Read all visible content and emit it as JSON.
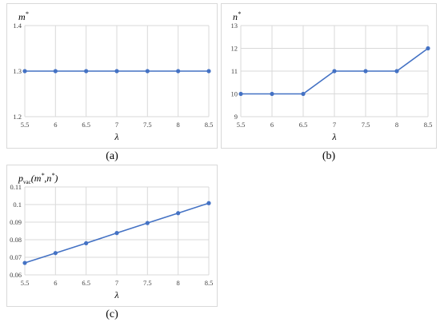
{
  "chart_data": [
    {
      "id": "a",
      "type": "line",
      "caption": "(a)",
      "title": "m*",
      "xlabel": "λ",
      "ylabel": "",
      "x": [
        5.5,
        6,
        6.5,
        7,
        7.5,
        8,
        8.5
      ],
      "x_tick_labels": [
        "5.5",
        "6",
        "6.5",
        "7",
        "7.5",
        "8",
        "8.5"
      ],
      "y_ticks": [
        1.2,
        1.3,
        1.4
      ],
      "y_tick_labels": [
        "1.2",
        "1.3",
        "1.4"
      ],
      "ylim": [
        1.2,
        1.4
      ],
      "grid": true,
      "legend": "none",
      "series": [
        {
          "values": [
            1.3,
            1.3,
            1.3,
            1.3,
            1.3,
            1.3,
            1.3
          ],
          "color": "#4472c4"
        }
      ]
    },
    {
      "id": "b",
      "type": "line",
      "caption": "(b)",
      "title": "n*",
      "xlabel": "λ",
      "ylabel": "",
      "x": [
        5.5,
        6,
        6.5,
        7,
        7.5,
        8,
        8.5
      ],
      "x_tick_labels": [
        "5.5",
        "6",
        "6.5",
        "7",
        "7.5",
        "8",
        "8.5"
      ],
      "y_ticks": [
        9,
        10,
        11,
        12,
        13
      ],
      "y_tick_labels": [
        "9",
        "10",
        "11",
        "12",
        "13"
      ],
      "ylim": [
        9,
        13
      ],
      "grid": true,
      "legend": "none",
      "series": [
        {
          "values": [
            10,
            10,
            10,
            11,
            11,
            11,
            12
          ],
          "color": "#4472c4"
        }
      ]
    },
    {
      "id": "c",
      "type": "line",
      "caption": "(c)",
      "title": "pvac(m*,n*)",
      "title_parts": {
        "main": "p",
        "sub": "vac",
        "open": "(m",
        "star1": "*",
        "comma": ",n",
        "star2": "*",
        "close": ")"
      },
      "xlabel": "λ",
      "ylabel": "",
      "x": [
        5.5,
        6,
        6.5,
        7,
        7.5,
        8,
        8.5
      ],
      "x_tick_labels": [
        "5.5",
        "6",
        "6.5",
        "7",
        "7.5",
        "8",
        "8.5"
      ],
      "y_ticks": [
        0.06,
        0.07,
        0.08,
        0.09,
        0.1,
        0.11
      ],
      "y_tick_labels": [
        "0.06",
        "0.07",
        "0.08",
        "0.09",
        "0.1",
        "0.11"
      ],
      "ylim": [
        0.06,
        0.11
      ],
      "grid": true,
      "legend": "none",
      "series": [
        {
          "values": [
            0.0668,
            0.0724,
            0.078,
            0.0838,
            0.0895,
            0.0951,
            0.1008
          ],
          "color": "#4472c4"
        }
      ]
    }
  ],
  "colors": {
    "line": "#4472c4",
    "grid": "#d9d9d9",
    "border": "#d9d9d9"
  }
}
